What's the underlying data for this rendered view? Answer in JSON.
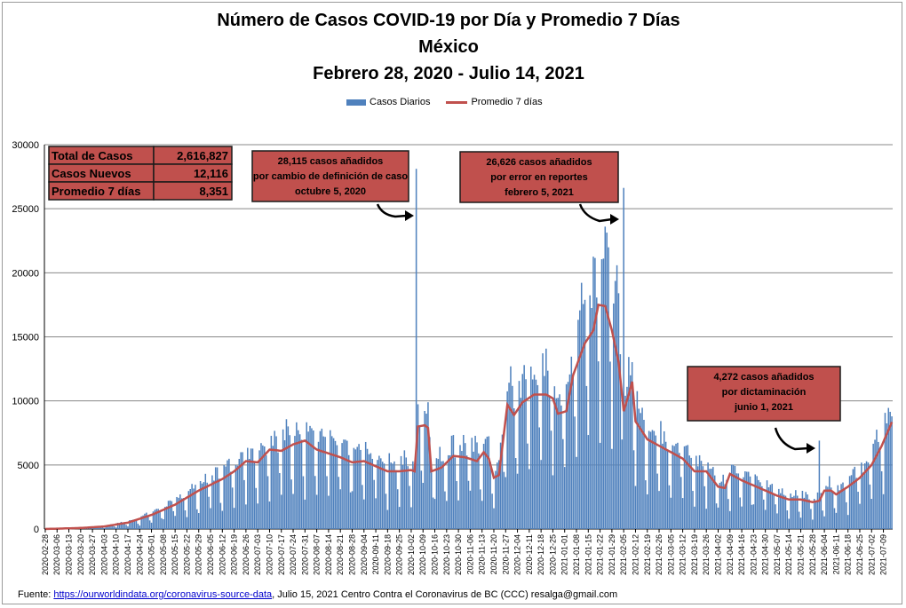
{
  "title": {
    "line1": "Número de  Casos  COVID-19 por Día y Promedio 7 Días",
    "line2": "México",
    "line3": "Febrero 28, 2020  - Julio 14, 2021"
  },
  "legend": {
    "bars": "Casos Diarios",
    "line": "Promedio 7 días"
  },
  "summary_table": [
    {
      "label": "Total de Casos",
      "value": "2,616,827"
    },
    {
      "label": "Casos Nuevos",
      "value": "12,116"
    },
    {
      "label": "Promedio 7 días",
      "value": "8,351"
    }
  ],
  "annotations": [
    {
      "lines": [
        "28,115 casos  añadidos",
        "por cambio de definición de caso",
        "octubre  5, 2020"
      ]
    },
    {
      "lines": [
        "26,626 casos  añadidos",
        "por error en reportes",
        "febrero  5, 2021"
      ]
    },
    {
      "lines": [
        "4,272 casos  añadidos",
        "por dictaminación",
        "junio 1, 2021"
      ]
    }
  ],
  "source": {
    "prefix": "Fuente:  ",
    "link": "https://ourworldindata.org/coronavirus-source-data",
    "suffix": ",  Julio 15, 2021    Centro  Contra el Coronavirus de BC  (CCC) resalga@gmail.com"
  },
  "colors": {
    "bars": "#4f81bd",
    "line": "#c0504d",
    "box_fill": "#c0504d",
    "box_border": "#1a1a1a"
  },
  "chart_data": {
    "type": "bar",
    "start_date": "2020-02-28",
    "end_date": "2021-07-14",
    "ylim": [
      0,
      30000
    ],
    "yticks": [
      0,
      5000,
      10000,
      15000,
      20000,
      25000,
      30000
    ],
    "grid": "horizontal",
    "legend_position": "top-center",
    "series": [
      {
        "name": "Casos Diarios",
        "type": "bar"
      },
      {
        "name": "Promedio 7 días",
        "type": "line"
      }
    ],
    "xticks": [
      "2020-02-28",
      "2020-03-06",
      "2020-03-13",
      "2020-03-20",
      "2020-03-27",
      "2020-04-03",
      "2020-04-10",
      "2020-04-17",
      "2020-04-24",
      "2020-05-01",
      "2020-05-08",
      "2020-05-15",
      "2020-05-22",
      "2020-05-29",
      "2020-06-05",
      "2020-06-12",
      "2020-06-19",
      "2020-06-26",
      "2020-07-03",
      "2020-07-10",
      "2020-07-17",
      "2020-07-24",
      "2020-07-31",
      "2020-08-07",
      "2020-08-14",
      "2020-08-21",
      "2020-08-28",
      "2020-09-04",
      "2020-09-11",
      "2020-09-18",
      "2020-09-25",
      "2020-10-02",
      "2020-10-09",
      "2020-10-16",
      "2020-10-23",
      "2020-10-30",
      "2020-11-06",
      "2020-11-13",
      "2020-11-20",
      "2020-11-27",
      "2020-12-04",
      "2020-12-11",
      "2020-12-18",
      "2020-12-25",
      "2021-01-01",
      "2021-01-08",
      "2021-01-15",
      "2021-01-22",
      "2021-01-29",
      "2021-02-05",
      "2021-02-12",
      "2021-02-19",
      "2021-02-26",
      "2021-03-05",
      "2021-03-12",
      "2021-03-19",
      "2021-03-26",
      "2021-04-02",
      "2021-04-09",
      "2021-04-16",
      "2021-04-23",
      "2021-04-30",
      "2021-05-07",
      "2021-05-14",
      "2021-05-21",
      "2021-05-28",
      "2021-06-04",
      "2021-06-11",
      "2021-06-18",
      "2021-06-25",
      "2021-07-02",
      "2021-07-09"
    ],
    "avg_knots": [
      [
        "2020-02-28",
        0
      ],
      [
        "2020-03-20",
        80
      ],
      [
        "2020-04-03",
        200
      ],
      [
        "2020-04-17",
        500
      ],
      [
        "2020-05-01",
        1100
      ],
      [
        "2020-05-15",
        1900
      ],
      [
        "2020-05-29",
        3000
      ],
      [
        "2020-06-12",
        3900
      ],
      [
        "2020-06-19",
        4500
      ],
      [
        "2020-06-26",
        5300
      ],
      [
        "2020-07-03",
        5200
      ],
      [
        "2020-07-10",
        6200
      ],
      [
        "2020-07-17",
        6100
      ],
      [
        "2020-07-24",
        6600
      ],
      [
        "2020-07-31",
        6900
      ],
      [
        "2020-08-07",
        6200
      ],
      [
        "2020-08-14",
        5900
      ],
      [
        "2020-08-21",
        5600
      ],
      [
        "2020-08-28",
        5200
      ],
      [
        "2020-09-04",
        5300
      ],
      [
        "2020-09-11",
        4900
      ],
      [
        "2020-09-18",
        4500
      ],
      [
        "2020-09-25",
        4500
      ],
      [
        "2020-10-02",
        4600
      ],
      [
        "2020-10-04",
        4500
      ],
      [
        "2020-10-06",
        8000
      ],
      [
        "2020-10-10",
        8100
      ],
      [
        "2020-10-12",
        7900
      ],
      [
        "2020-10-14",
        4500
      ],
      [
        "2020-10-20",
        4800
      ],
      [
        "2020-10-27",
        5700
      ],
      [
        "2020-11-03",
        5600
      ],
      [
        "2020-11-10",
        5300
      ],
      [
        "2020-11-14",
        6000
      ],
      [
        "2020-11-17",
        5500
      ],
      [
        "2020-11-20",
        4000
      ],
      [
        "2020-11-23",
        4200
      ],
      [
        "2020-11-28",
        9700
      ],
      [
        "2020-12-02",
        8900
      ],
      [
        "2020-12-07",
        9900
      ],
      [
        "2020-12-14",
        10500
      ],
      [
        "2020-12-21",
        10500
      ],
      [
        "2020-12-25",
        10200
      ],
      [
        "2020-12-28",
        9000
      ],
      [
        "2021-01-02",
        9200
      ],
      [
        "2021-01-06",
        12000
      ],
      [
        "2021-01-13",
        14500
      ],
      [
        "2021-01-18",
        15500
      ],
      [
        "2021-01-21",
        17500
      ],
      [
        "2021-01-25",
        17400
      ],
      [
        "2021-01-29",
        15500
      ],
      [
        "2021-02-02",
        13000
      ],
      [
        "2021-02-05",
        9200
      ],
      [
        "2021-02-08",
        10500
      ],
      [
        "2021-02-10",
        11500
      ],
      [
        "2021-02-12",
        8400
      ],
      [
        "2021-02-19",
        7000
      ],
      [
        "2021-02-26",
        6500
      ],
      [
        "2021-03-05",
        6000
      ],
      [
        "2021-03-12",
        5500
      ],
      [
        "2021-03-19",
        4500
      ],
      [
        "2021-03-26",
        4500
      ],
      [
        "2021-04-02",
        3300
      ],
      [
        "2021-04-06",
        3200
      ],
      [
        "2021-04-09",
        4300
      ],
      [
        "2021-04-16",
        3800
      ],
      [
        "2021-04-23",
        3400
      ],
      [
        "2021-04-30",
        3000
      ],
      [
        "2021-05-07",
        2600
      ],
      [
        "2021-05-14",
        2300
      ],
      [
        "2021-05-21",
        2300
      ],
      [
        "2021-05-28",
        2100
      ],
      [
        "2021-06-01",
        2200
      ],
      [
        "2021-06-04",
        3000
      ],
      [
        "2021-06-08",
        3000
      ],
      [
        "2021-06-11",
        2700
      ],
      [
        "2021-06-18",
        3300
      ],
      [
        "2021-06-25",
        4000
      ],
      [
        "2021-07-02",
        5000
      ],
      [
        "2021-07-08",
        6500
      ],
      [
        "2021-07-14",
        8351
      ]
    ],
    "spikes": [
      {
        "date": "2020-10-05",
        "value": 28115
      },
      {
        "date": "2021-02-05",
        "value": 26626
      },
      {
        "date": "2021-06-01",
        "value": 6900
      }
    ]
  }
}
